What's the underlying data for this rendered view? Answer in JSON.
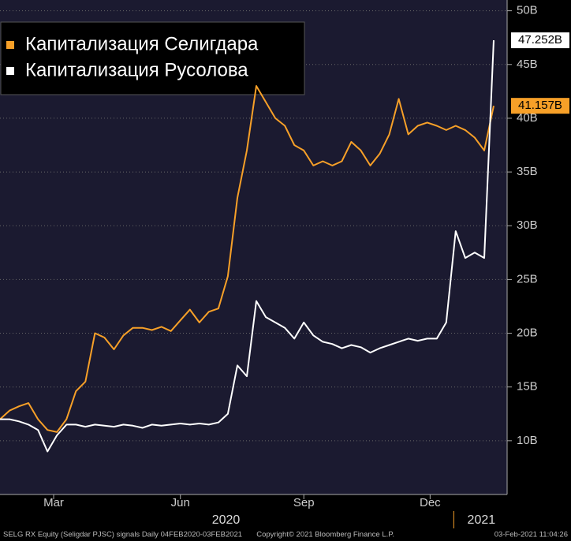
{
  "chart_data": {
    "type": "line",
    "series": [
      {
        "name": "Капитализация Селигдара",
        "color": "#f7a028",
        "values": [
          12,
          12.8,
          13.2,
          13.5,
          12,
          11,
          10.8,
          12,
          14.6,
          15.5,
          20,
          19.6,
          18.5,
          19.8,
          20.5,
          20.5,
          20.3,
          20.6,
          20.2,
          21.2,
          22.2,
          21,
          22,
          22.3,
          25.3,
          32.6,
          37,
          43,
          41.5,
          40,
          39.3,
          37.5,
          37,
          35.6,
          36,
          35.6,
          36,
          37.8,
          37,
          35.6,
          36.7,
          38.5,
          41.8,
          38.5,
          39.3,
          39.6,
          39.3,
          38.9,
          39.3,
          38.9,
          38.2,
          37,
          41.157
        ],
        "value_labels": [
          null,
          null,
          null,
          null,
          null,
          null,
          null,
          null,
          null,
          null,
          null,
          null,
          null,
          null,
          null,
          null,
          null,
          null,
          null,
          null,
          null,
          null,
          null,
          null,
          null,
          null,
          null,
          null,
          null,
          null,
          null,
          null,
          null,
          null,
          null,
          null,
          null,
          null,
          null,
          null,
          null,
          null,
          null,
          null,
          null,
          null,
          null,
          null,
          null,
          null,
          null,
          null,
          "41.157B"
        ]
      },
      {
        "name": "Капитализация Русолова",
        "color": "#ffffff",
        "values": [
          12,
          12,
          11.8,
          11.5,
          11,
          9,
          10.5,
          11.5,
          11.5,
          11.3,
          11.5,
          11.4,
          11.3,
          11.5,
          11.4,
          11.2,
          11.5,
          11.4,
          11.5,
          11.6,
          11.5,
          11.6,
          11.5,
          11.7,
          12.5,
          17,
          16,
          23,
          21.5,
          21,
          20.5,
          19.5,
          21,
          19.8,
          19.2,
          19,
          18.6,
          18.9,
          18.7,
          18.2,
          18.6,
          18.9,
          19.2,
          19.5,
          19.3,
          19.5,
          19.5,
          21,
          29.5,
          27,
          27.5,
          27,
          47.252
        ],
        "value_labels": [
          null,
          null,
          null,
          null,
          null,
          null,
          null,
          null,
          null,
          null,
          null,
          null,
          null,
          null,
          null,
          null,
          null,
          null,
          null,
          null,
          null,
          null,
          null,
          null,
          null,
          null,
          null,
          null,
          null,
          null,
          null,
          null,
          null,
          null,
          null,
          null,
          null,
          null,
          null,
          null,
          null,
          null,
          null,
          null,
          null,
          null,
          null,
          null,
          null,
          null,
          null,
          null,
          "47.252B"
        ]
      }
    ],
    "xlim": [
      0,
      52
    ],
    "xticks": [
      {
        "value": 5.65,
        "label": "Mar"
      },
      {
        "value": 19,
        "label": "Jun"
      },
      {
        "value": 32,
        "label": "Sep"
      },
      {
        "value": 45.3,
        "label": "Dec"
      }
    ],
    "year_ticks": [
      {
        "value": 23.8,
        "label": "2020"
      },
      {
        "value": 50.7,
        "label": "2021"
      }
    ],
    "ylim": [
      5,
      51
    ],
    "yticks": [
      {
        "value": 10,
        "label": "10B"
      },
      {
        "value": 15,
        "label": "15B"
      },
      {
        "value": 20,
        "label": "20B"
      },
      {
        "value": 25,
        "label": "25B"
      },
      {
        "value": 30,
        "label": "30B"
      },
      {
        "value": 35,
        "label": "35B"
      },
      {
        "value": 40,
        "label": "40B"
      },
      {
        "value": 45,
        "label": "45B"
      },
      {
        "value": 50,
        "label": "50B"
      }
    ],
    "grid": true,
    "legend": "upper left",
    "footer": [
      "SELG RX Equity (Seligdar PJSC) signals  Daily 04FEB2020-03FEB2021",
      "Copyright© 2021 Bloomberg Finance L.P.",
      "03-Feb-2021 11:04:26"
    ]
  }
}
